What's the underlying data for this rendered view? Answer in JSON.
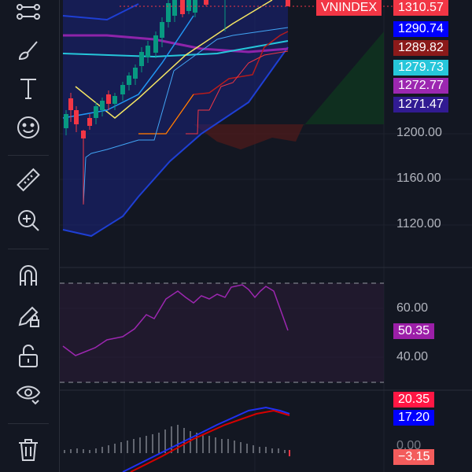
{
  "toolbar": {
    "tools": [
      {
        "name": "trend-line-tool",
        "icon": "trend-line-icon"
      },
      {
        "name": "brush-tool",
        "icon": "brush-icon"
      },
      {
        "name": "text-tool",
        "icon": "text-icon"
      },
      {
        "name": "emoji-tool",
        "icon": "smiley-icon"
      },
      {
        "name": "measure-tool",
        "icon": "ruler-icon"
      },
      {
        "name": "zoom-tool",
        "icon": "zoom-in-icon"
      },
      {
        "name": "magnet-tool",
        "icon": "magnet-icon"
      },
      {
        "name": "lock-drawings-tool",
        "icon": "pencil-lock-icon"
      },
      {
        "name": "unlock-tool",
        "icon": "unlock-icon"
      },
      {
        "name": "hide-drawings-tool",
        "icon": "eye-icon"
      },
      {
        "name": "remove-drawings-tool",
        "icon": "trash-icon"
      }
    ]
  },
  "main_pane": {
    "symbol": "VNINDEX",
    "last_price": "1310.57",
    "indicator_labels": [
      {
        "value": "1290.74",
        "color": "#0000ff"
      },
      {
        "value": "1289.82",
        "color": "#8b1a1a"
      },
      {
        "value": "1279.73",
        "color": "#26c6da"
      },
      {
        "value": "1272.77",
        "color": "#9c27b0"
      },
      {
        "value": "1271.47",
        "color": "#311b92"
      }
    ],
    "axis_ticks": [
      "1200.00",
      "1160.00",
      "1120.00"
    ]
  },
  "rsi_pane": {
    "axis_ticks": [
      "60.00",
      "40.00"
    ],
    "current_value": "50.35",
    "current_color": "#9c1fa8"
  },
  "macd_pane": {
    "labels": [
      {
        "value": "20.35",
        "color": "#ff1744"
      },
      {
        "value": "17.20",
        "color": "#0000ff"
      },
      {
        "value": "−3.15",
        "color": "#f35c5c"
      }
    ],
    "partial_tick": "0.00"
  },
  "colors": {
    "background": "#131722",
    "up_candle": "#089981",
    "down_candle": "#f23645",
    "bollinger_fill": "#1a237e"
  }
}
